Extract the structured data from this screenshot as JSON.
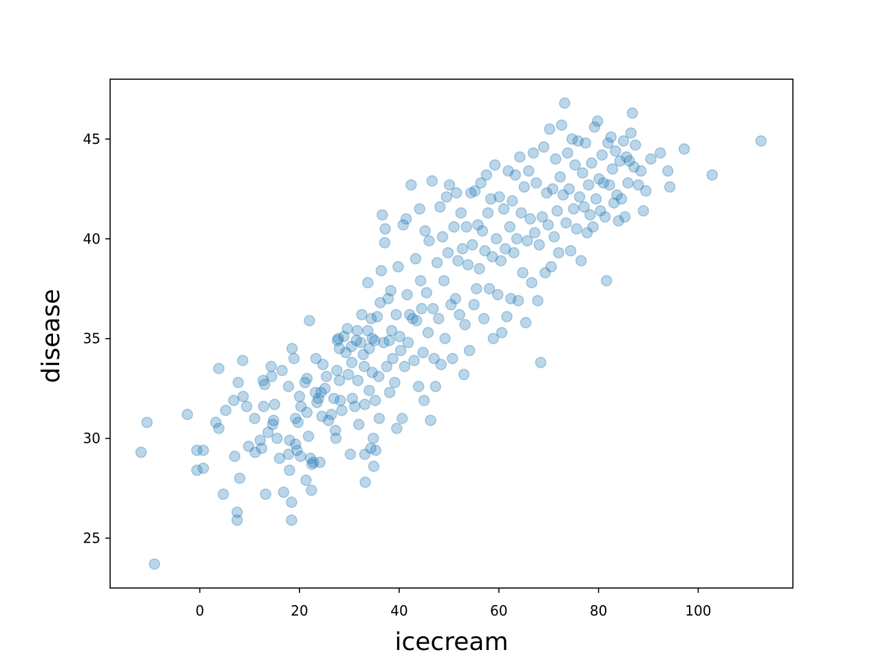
{
  "chart_data": {
    "type": "scatter",
    "title": "",
    "xlabel": "icecream",
    "ylabel": "disease",
    "xlim": [
      -18,
      119
    ],
    "ylim": [
      22.5,
      48
    ],
    "x_ticks": [
      0,
      20,
      40,
      60,
      80,
      100
    ],
    "y_ticks": [
      25,
      30,
      35,
      40,
      45
    ],
    "grid": false,
    "marker_color": "#1f77b4",
    "marker_alpha": 0.3,
    "points": [
      [
        -11.8,
        29.3
      ],
      [
        -10.6,
        30.8
      ],
      [
        -9.1,
        23.7
      ],
      [
        -2.5,
        31.2
      ],
      [
        -0.6,
        29.4
      ],
      [
        0.7,
        29.4
      ],
      [
        -0.6,
        28.4
      ],
      [
        0.7,
        28.5
      ],
      [
        3.2,
        30.8
      ],
      [
        3.8,
        30.5
      ],
      [
        3.8,
        33.5
      ],
      [
        4.7,
        27.2
      ],
      [
        5.2,
        31.4
      ],
      [
        7.0,
        29.1
      ],
      [
        7.5,
        26.3
      ],
      [
        7.5,
        25.9
      ],
      [
        8.0,
        28.0
      ],
      [
        7.7,
        32.8
      ],
      [
        6.8,
        31.9
      ],
      [
        8.6,
        33.9
      ],
      [
        8.7,
        32.1
      ],
      [
        9.4,
        31.6
      ],
      [
        9.8,
        29.6
      ],
      [
        11.1,
        29.3
      ],
      [
        11.0,
        31.0
      ],
      [
        12.1,
        29.9
      ],
      [
        12.4,
        29.5
      ],
      [
        12.7,
        32.9
      ],
      [
        13.0,
        32.7
      ],
      [
        12.8,
        31.6
      ],
      [
        13.7,
        30.3
      ],
      [
        13.2,
        27.2
      ],
      [
        14.3,
        33.6
      ],
      [
        14.4,
        33.1
      ],
      [
        14.8,
        30.9
      ],
      [
        14.6,
        30.7
      ],
      [
        15.0,
        31.7
      ],
      [
        15.5,
        30.0
      ],
      [
        16.0,
        29.0
      ],
      [
        16.5,
        33.4
      ],
      [
        16.8,
        27.3
      ],
      [
        17.8,
        32.6
      ],
      [
        17.8,
        29.2
      ],
      [
        18.0,
        29.9
      ],
      [
        18.0,
        28.4
      ],
      [
        18.4,
        26.8
      ],
      [
        18.4,
        25.9
      ],
      [
        18.5,
        34.5
      ],
      [
        18.9,
        34.0
      ],
      [
        19.2,
        31.0
      ],
      [
        19.2,
        29.7
      ],
      [
        19.5,
        29.4
      ],
      [
        19.7,
        30.8
      ],
      [
        20.0,
        32.1
      ],
      [
        20.3,
        31.6
      ],
      [
        20.2,
        29.1
      ],
      [
        21.3,
        27.9
      ],
      [
        21.1,
        32.8
      ],
      [
        21.5,
        33.0
      ],
      [
        21.5,
        31.3
      ],
      [
        21.8,
        30.1
      ],
      [
        22.0,
        35.9
      ],
      [
        22.2,
        29.0
      ],
      [
        22.4,
        27.4
      ],
      [
        22.5,
        28.7
      ],
      [
        22.8,
        28.8
      ],
      [
        23.3,
        34.0
      ],
      [
        23.2,
        32.3
      ],
      [
        23.5,
        31.8
      ],
      [
        23.8,
        32.0
      ],
      [
        24.3,
        32.3
      ],
      [
        24.5,
        31.1
      ],
      [
        24.1,
        28.8
      ],
      [
        24.7,
        33.7
      ],
      [
        25.1,
        32.5
      ],
      [
        25.4,
        33.1
      ],
      [
        25.8,
        30.9
      ],
      [
        26.4,
        31.2
      ],
      [
        26.9,
        32.0
      ],
      [
        27.2,
        30.4
      ],
      [
        27.3,
        30.0
      ],
      [
        27.5,
        33.4
      ],
      [
        27.6,
        34.9
      ],
      [
        27.8,
        35.0
      ],
      [
        28.0,
        34.5
      ],
      [
        28.0,
        32.9
      ],
      [
        28.2,
        31.9
      ],
      [
        28.5,
        31.4
      ],
      [
        28.9,
        35.1
      ],
      [
        29.3,
        34.3
      ],
      [
        29.6,
        35.5
      ],
      [
        29.8,
        33.2
      ],
      [
        30.2,
        29.2
      ],
      [
        30.4,
        34.6
      ],
      [
        30.5,
        33.8
      ],
      [
        30.6,
        32.0
      ],
      [
        31.1,
        31.6
      ],
      [
        31.4,
        34.9
      ],
      [
        31.6,
        35.4
      ],
      [
        31.7,
        32.9
      ],
      [
        31.9,
        30.7
      ],
      [
        32.3,
        34.8
      ],
      [
        32.5,
        36.2
      ],
      [
        32.8,
        34.2
      ],
      [
        33.0,
        33.6
      ],
      [
        33.1,
        31.7
      ],
      [
        33.1,
        29.2
      ],
      [
        33.2,
        27.8
      ],
      [
        33.7,
        37.8
      ],
      [
        33.7,
        35.4
      ],
      [
        34.0,
        34.5
      ],
      [
        34.0,
        32.4
      ],
      [
        34.3,
        29.5
      ],
      [
        34.4,
        36.0
      ],
      [
        34.6,
        35.0
      ],
      [
        34.6,
        33.3
      ],
      [
        34.8,
        30.0
      ],
      [
        34.9,
        28.6
      ],
      [
        35.1,
        34.9
      ],
      [
        35.2,
        31.9
      ],
      [
        35.3,
        29.4
      ],
      [
        35.6,
        36.1
      ],
      [
        35.9,
        33.1
      ],
      [
        36.0,
        31.0
      ],
      [
        36.2,
        36.8
      ],
      [
        36.4,
        38.4
      ],
      [
        36.6,
        41.2
      ],
      [
        36.9,
        34.8
      ],
      [
        37.1,
        39.8
      ],
      [
        37.2,
        40.5
      ],
      [
        37.5,
        33.6
      ],
      [
        37.8,
        37.0
      ],
      [
        38.0,
        34.9
      ],
      [
        38.1,
        32.3
      ],
      [
        38.3,
        37.4
      ],
      [
        38.5,
        35.4
      ],
      [
        38.7,
        34.0
      ],
      [
        39.1,
        32.8
      ],
      [
        39.4,
        36.2
      ],
      [
        39.5,
        30.5
      ],
      [
        39.8,
        38.6
      ],
      [
        40.1,
        35.1
      ],
      [
        40.3,
        34.4
      ],
      [
        40.6,
        31.0
      ],
      [
        40.8,
        40.7
      ],
      [
        41.1,
        33.6
      ],
      [
        41.4,
        41.0
      ],
      [
        41.6,
        37.2
      ],
      [
        41.8,
        34.8
      ],
      [
        42.1,
        36.2
      ],
      [
        42.4,
        42.7
      ],
      [
        42.7,
        36.0
      ],
      [
        43.0,
        33.9
      ],
      [
        43.3,
        39.0
      ],
      [
        43.5,
        35.9
      ],
      [
        43.9,
        32.6
      ],
      [
        44.1,
        41.5
      ],
      [
        44.3,
        37.9
      ],
      [
        44.5,
        36.5
      ],
      [
        44.8,
        34.3
      ],
      [
        45.0,
        31.9
      ],
      [
        45.2,
        40.4
      ],
      [
        45.5,
        37.3
      ],
      [
        45.8,
        35.3
      ],
      [
        46.0,
        39.9
      ],
      [
        46.3,
        30.9
      ],
      [
        46.6,
        42.9
      ],
      [
        46.8,
        36.5
      ],
      [
        47.0,
        34.0
      ],
      [
        47.3,
        32.6
      ],
      [
        47.6,
        38.8
      ],
      [
        47.9,
        36.0
      ],
      [
        48.2,
        41.6
      ],
      [
        48.4,
        33.7
      ],
      [
        48.7,
        40.1
      ],
      [
        49.0,
        37.9
      ],
      [
        49.2,
        35.0
      ],
      [
        49.5,
        42.1
      ],
      [
        49.8,
        39.3
      ],
      [
        50.1,
        42.7
      ],
      [
        50.4,
        36.7
      ],
      [
        50.7,
        34.0
      ],
      [
        51.0,
        40.6
      ],
      [
        51.3,
        37.0
      ],
      [
        51.5,
        42.3
      ],
      [
        51.8,
        38.9
      ],
      [
        52.1,
        36.2
      ],
      [
        52.4,
        41.3
      ],
      [
        52.7,
        39.5
      ],
      [
        53.0,
        33.2
      ],
      [
        53.2,
        35.7
      ],
      [
        53.5,
        40.6
      ],
      [
        53.8,
        38.7
      ],
      [
        54.1,
        34.4
      ],
      [
        54.4,
        42.3
      ],
      [
        54.7,
        39.7
      ],
      [
        55.0,
        36.7
      ],
      [
        55.2,
        42.4
      ],
      [
        55.5,
        37.5
      ],
      [
        55.8,
        40.7
      ],
      [
        56.1,
        38.5
      ],
      [
        56.4,
        42.8
      ],
      [
        56.7,
        40.4
      ],
      [
        57.0,
        36.0
      ],
      [
        57.2,
        39.4
      ],
      [
        57.5,
        43.2
      ],
      [
        57.8,
        41.3
      ],
      [
        58.1,
        37.5
      ],
      [
        58.4,
        42.0
      ],
      [
        58.7,
        39.1
      ],
      [
        58.9,
        35.0
      ],
      [
        59.2,
        43.7
      ],
      [
        59.5,
        40.0
      ],
      [
        59.8,
        37.2
      ],
      [
        60.1,
        42.1
      ],
      [
        60.4,
        38.9
      ],
      [
        60.6,
        35.3
      ],
      [
        61.0,
        41.5
      ],
      [
        61.3,
        39.5
      ],
      [
        61.6,
        36.1
      ],
      [
        61.9,
        43.4
      ],
      [
        62.2,
        40.6
      ],
      [
        62.4,
        37.0
      ],
      [
        62.7,
        41.9
      ],
      [
        63.0,
        39.3
      ],
      [
        63.3,
        43.2
      ],
      [
        63.6,
        40.0
      ],
      [
        63.9,
        36.9
      ],
      [
        64.2,
        44.1
      ],
      [
        64.5,
        41.3
      ],
      [
        64.8,
        38.3
      ],
      [
        65.1,
        42.6
      ],
      [
        65.4,
        35.8
      ],
      [
        65.7,
        39.9
      ],
      [
        66.0,
        43.4
      ],
      [
        66.3,
        41.0
      ],
      [
        66.6,
        37.8
      ],
      [
        66.9,
        44.3
      ],
      [
        67.2,
        40.3
      ],
      [
        67.5,
        42.8
      ],
      [
        67.8,
        36.9
      ],
      [
        68.1,
        39.7
      ],
      [
        68.4,
        33.8
      ],
      [
        68.7,
        41.1
      ],
      [
        69.0,
        44.6
      ],
      [
        69.3,
        38.3
      ],
      [
        69.6,
        42.3
      ],
      [
        69.9,
        40.7
      ],
      [
        70.2,
        45.5
      ],
      [
        70.5,
        38.6
      ],
      [
        70.8,
        42.5
      ],
      [
        71.1,
        40.1
      ],
      [
        71.4,
        44.0
      ],
      [
        71.7,
        41.4
      ],
      [
        72.0,
        39.3
      ],
      [
        72.3,
        43.1
      ],
      [
        72.6,
        45.7
      ],
      [
        72.9,
        42.2
      ],
      [
        73.2,
        46.8
      ],
      [
        73.5,
        40.8
      ],
      [
        73.8,
        44.3
      ],
      [
        74.1,
        42.5
      ],
      [
        74.4,
        39.4
      ],
      [
        74.7,
        45.0
      ],
      [
        75.0,
        41.5
      ],
      [
        75.3,
        43.7
      ],
      [
        75.6,
        40.5
      ],
      [
        75.9,
        44.9
      ],
      [
        76.2,
        42.1
      ],
      [
        76.5,
        38.9
      ],
      [
        76.8,
        43.3
      ],
      [
        77.1,
        41.6
      ],
      [
        77.4,
        44.8
      ],
      [
        77.7,
        40.3
      ],
      [
        78.0,
        42.7
      ],
      [
        78.3,
        41.2
      ],
      [
        78.6,
        43.8
      ],
      [
        78.9,
        40.6
      ],
      [
        79.2,
        45.6
      ],
      [
        79.5,
        42.0
      ],
      [
        79.8,
        45.9
      ],
      [
        80.1,
        43.0
      ],
      [
        80.4,
        41.4
      ],
      [
        80.7,
        44.2
      ],
      [
        81.0,
        42.8
      ],
      [
        81.3,
        41.1
      ],
      [
        81.6,
        37.9
      ],
      [
        81.9,
        44.8
      ],
      [
        82.2,
        42.7
      ],
      [
        82.5,
        45.1
      ],
      [
        82.8,
        43.5
      ],
      [
        83.1,
        41.8
      ],
      [
        83.4,
        44.4
      ],
      [
        83.7,
        42.2
      ],
      [
        84.0,
        40.9
      ],
      [
        84.3,
        43.9
      ],
      [
        84.6,
        42.0
      ],
      [
        85.0,
        44.9
      ],
      [
        85.3,
        41.1
      ],
      [
        85.6,
        44.1
      ],
      [
        85.9,
        42.8
      ],
      [
        86.2,
        43.9
      ],
      [
        86.5,
        45.3
      ],
      [
        86.8,
        46.3
      ],
      [
        87.1,
        43.6
      ],
      [
        87.4,
        44.7
      ],
      [
        88.0,
        42.7
      ],
      [
        88.5,
        43.4
      ],
      [
        89.0,
        41.4
      ],
      [
        89.5,
        42.4
      ],
      [
        90.5,
        44.0
      ],
      [
        92.4,
        44.3
      ],
      [
        93.9,
        43.4
      ],
      [
        94.3,
        42.6
      ],
      [
        97.2,
        44.5
      ],
      [
        102.8,
        43.2
      ],
      [
        112.6,
        44.9
      ]
    ]
  }
}
